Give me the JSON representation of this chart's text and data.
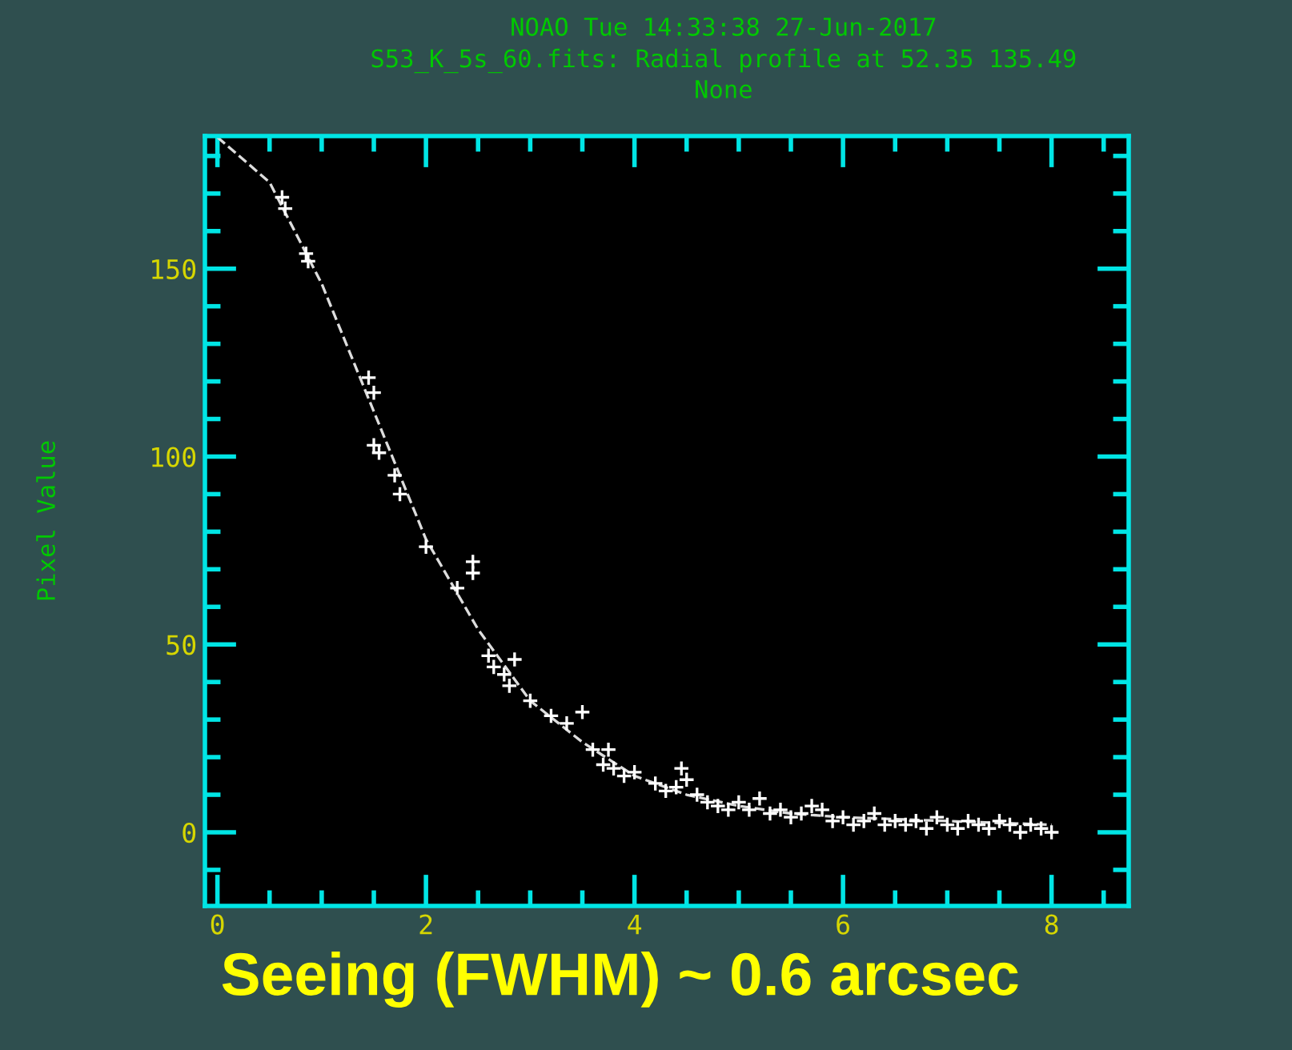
{
  "chart_data": {
    "type": "scatter",
    "title": "NOAO Tue 14:33:38 27-Jun-2017",
    "subtitle": "S53_K_5s_60.fits: Radial profile at 52.35 135.49",
    "ylabel": "Pixel Value",
    "annotations": [
      "None",
      "Seeing (FWHM) ~ 0.6 arcsec"
    ],
    "series": [
      {
        "color": "#ffffff",
        "marker": "cross",
        "x": [
          0.62,
          0.65,
          0.85,
          0.87,
          1.45,
          1.5,
          1.5,
          1.55,
          1.7,
          1.75,
          2.0,
          2.3,
          2.45,
          2.45,
          2.6,
          2.65,
          2.75,
          2.85,
          2.8,
          3.0,
          3.2,
          3.35,
          3.5,
          3.6,
          3.7,
          3.75,
          3.8,
          3.9,
          4.0,
          4.2,
          4.3,
          4.4,
          4.45,
          4.5,
          4.6,
          4.7,
          4.8,
          4.9,
          5.0,
          5.1,
          5.2,
          5.3,
          5.4,
          5.5,
          5.6,
          5.7,
          5.8,
          5.9,
          6.0,
          6.1,
          6.2,
          6.3,
          6.4,
          6.5,
          6.6,
          6.7,
          6.8,
          6.9,
          7.0,
          7.1,
          7.2,
          7.3,
          7.4,
          7.5,
          7.6,
          7.7,
          7.8,
          7.9,
          8.0
        ],
        "values": [
          169,
          166,
          154,
          152,
          121,
          117,
          103,
          101,
          95,
          90,
          76,
          65,
          72,
          69,
          47,
          44,
          42,
          46,
          39,
          35,
          31,
          29,
          32,
          22,
          18,
          22,
          17,
          15,
          16,
          13,
          11,
          12,
          17,
          14,
          10,
          8,
          7,
          6,
          8,
          6,
          9,
          5,
          6,
          4,
          5,
          7,
          6,
          3,
          4,
          2,
          3,
          5,
          2,
          3,
          2,
          3,
          1,
          4,
          2,
          1,
          3,
          2,
          1,
          3,
          2,
          0,
          2,
          1,
          0
        ]
      },
      {
        "type": "line",
        "color": "#dddddd",
        "line_style": "dashed",
        "marker": "none",
        "x": [
          0,
          0.5,
          1,
          1.5,
          2,
          2.5,
          3,
          3.5,
          4,
          4.5,
          5,
          5.5,
          6,
          7,
          8
        ],
        "values": [
          185,
          173,
          146,
          112,
          78,
          54,
          35,
          24,
          15,
          10,
          7,
          5,
          4,
          3,
          2
        ]
      }
    ],
    "xlim": [
      -0.12,
      8.74
    ],
    "ylim": [
      -19.6,
      185.3
    ],
    "xticks": [
      0,
      {
        "value": 0.5,
        "label": null
      },
      {
        "value": 1,
        "label": null
      },
      {
        "value": 1.5,
        "label": null
      },
      2,
      {
        "value": 2.5,
        "label": null
      },
      {
        "value": 3,
        "label": null
      },
      {
        "value": 3.5,
        "label": null
      },
      4,
      {
        "value": 4.5,
        "label": null
      },
      {
        "value": 5,
        "label": null
      },
      {
        "value": 5.5,
        "label": null
      },
      6,
      {
        "value": 6.5,
        "label": null
      },
      {
        "value": 7,
        "label": null
      },
      {
        "value": 7.5,
        "label": null
      },
      8,
      {
        "value": 8.5,
        "label": null
      }
    ],
    "yticks": [
      {
        "value": -10,
        "label": null
      },
      0,
      {
        "value": 10,
        "label": null
      },
      {
        "value": 20,
        "label": null
      },
      {
        "value": 30,
        "label": null
      },
      {
        "value": 40,
        "label": null
      },
      50,
      {
        "value": 60,
        "label": null
      },
      {
        "value": 70,
        "label": null
      },
      {
        "value": 80,
        "label": null
      },
      {
        "value": 90,
        "label": null
      },
      100,
      {
        "value": 110,
        "label": null
      },
      {
        "value": 120,
        "label": null
      },
      {
        "value": 130,
        "label": null
      },
      {
        "value": 140,
        "label": null
      },
      150,
      {
        "value": 160,
        "label": null
      },
      {
        "value": 170,
        "label": null
      },
      {
        "value": 180,
        "label": null
      }
    ],
    "grid": false,
    "legend": false
  }
}
